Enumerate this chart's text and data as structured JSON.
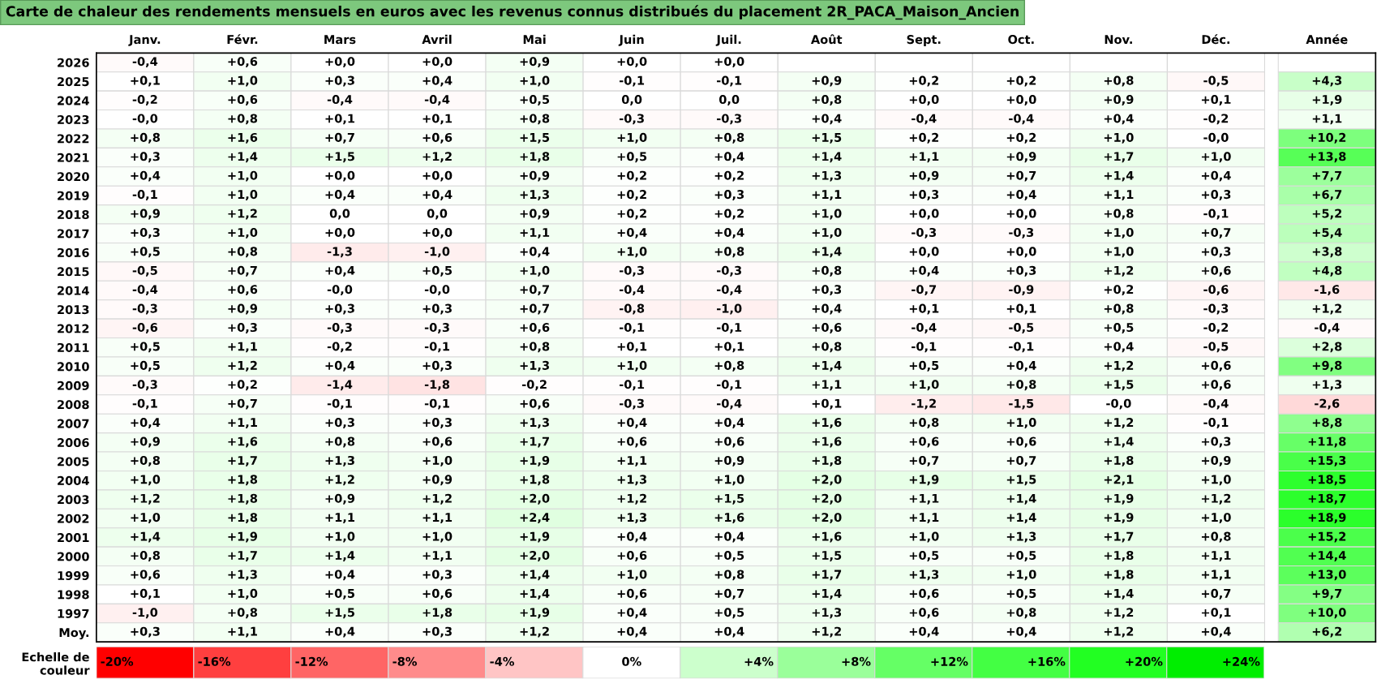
{
  "chart_data": [
    {
      "type": "heatmap",
      "title": "Carte de chaleur des rendements mensuels en euros avec les revenus connus distribués du placement 2R_PACA_Maison_Ancien",
      "categories": [
        "Janv.",
        "Févr.",
        "Mars",
        "Avril",
        "Mai",
        "Juin",
        "Juil.",
        "Août",
        "Sept.",
        "Oct.",
        "Nov.",
        "Déc.",
        "Année"
      ],
      "y_categories": [
        "2026",
        "2025",
        "2024",
        "2023",
        "2022",
        "2021",
        "2020",
        "2019",
        "2018",
        "2017",
        "2016",
        "2015",
        "2014",
        "2013",
        "2012",
        "2011",
        "2010",
        "2009",
        "2008",
        "2007",
        "2006",
        "2005",
        "2004",
        "2003",
        "2002",
        "2001",
        "2000",
        "1999",
        "1998",
        "1997",
        "Moy."
      ],
      "cells": [
        [
          -0.4,
          0.6,
          0.0,
          0.0,
          0.9,
          0.0,
          0.0,
          null,
          null,
          null,
          null,
          null,
          null
        ],
        [
          0.1,
          1.0,
          0.3,
          0.4,
          1.0,
          -0.1,
          -0.1,
          0.9,
          0.2,
          0.2,
          0.8,
          -0.5,
          4.3
        ],
        [
          -0.2,
          0.6,
          -0.4,
          -0.4,
          0.5,
          0.0,
          0.0,
          0.8,
          0.0,
          0.0,
          0.9,
          0.1,
          1.9
        ],
        [
          -0.0,
          0.8,
          0.1,
          0.1,
          0.8,
          -0.3,
          -0.3,
          0.4,
          -0.4,
          -0.4,
          0.4,
          -0.2,
          1.1
        ],
        [
          0.8,
          1.6,
          0.7,
          0.6,
          1.5,
          1.0,
          0.8,
          1.5,
          0.2,
          0.2,
          1.0,
          -0.0,
          10.2
        ],
        [
          0.3,
          1.4,
          1.5,
          1.2,
          1.8,
          0.5,
          0.4,
          1.4,
          1.1,
          0.9,
          1.7,
          1.0,
          13.8
        ],
        [
          0.4,
          1.0,
          0.0,
          0.0,
          0.9,
          0.2,
          0.2,
          1.3,
          0.9,
          0.7,
          1.4,
          0.4,
          7.7
        ],
        [
          -0.1,
          1.0,
          0.4,
          0.4,
          1.3,
          0.2,
          0.3,
          1.1,
          0.3,
          0.4,
          1.1,
          0.3,
          6.7
        ],
        [
          0.9,
          1.2,
          0.0,
          0.0,
          0.9,
          0.2,
          0.2,
          1.0,
          0.0,
          0.0,
          0.8,
          -0.1,
          5.2
        ],
        [
          0.3,
          1.0,
          0.0,
          0.0,
          1.1,
          0.4,
          0.4,
          1.0,
          -0.3,
          -0.3,
          1.0,
          0.7,
          5.4
        ],
        [
          0.5,
          0.8,
          -1.3,
          -1.0,
          0.4,
          1.0,
          0.8,
          1.4,
          0.0,
          0.0,
          1.0,
          0.3,
          3.8
        ],
        [
          -0.5,
          0.7,
          0.4,
          0.5,
          1.0,
          -0.3,
          -0.3,
          0.8,
          0.4,
          0.3,
          1.2,
          0.6,
          4.8
        ],
        [
          -0.4,
          0.6,
          -0.0,
          -0.0,
          0.7,
          -0.4,
          -0.4,
          0.3,
          -0.7,
          -0.9,
          0.2,
          -0.6,
          -1.6
        ],
        [
          -0.3,
          0.9,
          0.3,
          0.3,
          0.7,
          -0.8,
          -1.0,
          0.4,
          0.1,
          0.1,
          0.8,
          -0.3,
          1.2
        ],
        [
          -0.6,
          0.3,
          -0.3,
          -0.3,
          0.6,
          -0.1,
          -0.1,
          0.6,
          -0.4,
          -0.5,
          0.5,
          -0.2,
          -0.4
        ],
        [
          0.5,
          1.1,
          -0.2,
          -0.1,
          0.8,
          0.1,
          0.1,
          0.8,
          -0.1,
          -0.1,
          0.4,
          -0.5,
          2.8
        ],
        [
          0.5,
          1.2,
          0.4,
          0.3,
          1.3,
          1.0,
          0.8,
          1.4,
          0.5,
          0.4,
          1.2,
          0.6,
          9.8
        ],
        [
          -0.3,
          0.2,
          -1.4,
          -1.8,
          -0.2,
          -0.1,
          -0.1,
          1.1,
          1.0,
          0.8,
          1.5,
          0.6,
          1.3
        ],
        [
          -0.1,
          0.7,
          -0.1,
          -0.1,
          0.6,
          -0.3,
          -0.4,
          0.1,
          -1.2,
          -1.5,
          -0.0,
          -0.4,
          -2.6
        ],
        [
          0.4,
          1.1,
          0.3,
          0.3,
          1.3,
          0.4,
          0.4,
          1.6,
          0.8,
          1.0,
          1.2,
          -0.1,
          8.8
        ],
        [
          0.9,
          1.6,
          0.8,
          0.6,
          1.7,
          0.6,
          0.6,
          1.6,
          0.6,
          0.6,
          1.4,
          0.3,
          11.8
        ],
        [
          0.8,
          1.7,
          1.3,
          1.0,
          1.9,
          1.1,
          0.9,
          1.8,
          0.7,
          0.7,
          1.8,
          0.9,
          15.3
        ],
        [
          1.0,
          1.8,
          1.2,
          0.9,
          1.8,
          1.3,
          1.0,
          2.0,
          1.9,
          1.5,
          2.1,
          1.0,
          18.5
        ],
        [
          1.2,
          1.8,
          0.9,
          1.2,
          2.0,
          1.2,
          1.5,
          2.0,
          1.1,
          1.4,
          1.9,
          1.2,
          18.7
        ],
        [
          1.0,
          1.8,
          1.1,
          1.1,
          2.4,
          1.3,
          1.6,
          2.0,
          1.1,
          1.4,
          1.9,
          1.0,
          18.9
        ],
        [
          1.4,
          1.9,
          1.0,
          1.0,
          1.9,
          0.4,
          0.4,
          1.6,
          1.0,
          1.3,
          1.7,
          0.8,
          15.2
        ],
        [
          0.8,
          1.7,
          1.4,
          1.1,
          2.0,
          0.6,
          0.5,
          1.5,
          0.5,
          0.5,
          1.8,
          1.1,
          14.4
        ],
        [
          0.6,
          1.3,
          0.4,
          0.3,
          1.4,
          1.0,
          0.8,
          1.7,
          1.3,
          1.0,
          1.8,
          1.1,
          13.0
        ],
        [
          0.1,
          1.0,
          0.5,
          0.6,
          1.4,
          0.6,
          0.7,
          1.4,
          0.6,
          0.5,
          1.4,
          0.7,
          9.7
        ],
        [
          -1.0,
          0.8,
          1.5,
          1.8,
          1.9,
          0.4,
          0.5,
          1.3,
          0.6,
          0.8,
          1.2,
          0.1,
          10.0
        ],
        [
          0.3,
          1.1,
          0.4,
          0.3,
          1.2,
          0.4,
          0.4,
          1.2,
          0.4,
          0.4,
          1.2,
          0.4,
          6.2
        ]
      ],
      "cell_labels": [
        [
          "-0,4",
          "+0,6",
          "+0,0",
          "+0,0",
          "+0,9",
          "+0,0",
          "+0,0",
          null,
          null,
          null,
          null,
          null,
          null
        ],
        [
          "+0,1",
          "+1,0",
          "+0,3",
          "+0,4",
          "+1,0",
          "-0,1",
          "-0,1",
          "+0,9",
          "+0,2",
          "+0,2",
          "+0,8",
          "-0,5",
          "+4,3"
        ],
        [
          "-0,2",
          "+0,6",
          "-0,4",
          "-0,4",
          "+0,5",
          "0,0",
          "0,0",
          "+0,8",
          "+0,0",
          "+0,0",
          "+0,9",
          "+0,1",
          "+1,9"
        ],
        [
          "-0,0",
          "+0,8",
          "+0,1",
          "+0,1",
          "+0,8",
          "-0,3",
          "-0,3",
          "+0,4",
          "-0,4",
          "-0,4",
          "+0,4",
          "-0,2",
          "+1,1"
        ],
        [
          "+0,8",
          "+1,6",
          "+0,7",
          "+0,6",
          "+1,5",
          "+1,0",
          "+0,8",
          "+1,5",
          "+0,2",
          "+0,2",
          "+1,0",
          "-0,0",
          "+10,2"
        ],
        [
          "+0,3",
          "+1,4",
          "+1,5",
          "+1,2",
          "+1,8",
          "+0,5",
          "+0,4",
          "+1,4",
          "+1,1",
          "+0,9",
          "+1,7",
          "+1,0",
          "+13,8"
        ],
        [
          "+0,4",
          "+1,0",
          "+0,0",
          "+0,0",
          "+0,9",
          "+0,2",
          "+0,2",
          "+1,3",
          "+0,9",
          "+0,7",
          "+1,4",
          "+0,4",
          "+7,7"
        ],
        [
          "-0,1",
          "+1,0",
          "+0,4",
          "+0,4",
          "+1,3",
          "+0,2",
          "+0,3",
          "+1,1",
          "+0,3",
          "+0,4",
          "+1,1",
          "+0,3",
          "+6,7"
        ],
        [
          "+0,9",
          "+1,2",
          "0,0",
          "0,0",
          "+0,9",
          "+0,2",
          "+0,2",
          "+1,0",
          "+0,0",
          "+0,0",
          "+0,8",
          "-0,1",
          "+5,2"
        ],
        [
          "+0,3",
          "+1,0",
          "+0,0",
          "+0,0",
          "+1,1",
          "+0,4",
          "+0,4",
          "+1,0",
          "-0,3",
          "-0,3",
          "+1,0",
          "+0,7",
          "+5,4"
        ],
        [
          "+0,5",
          "+0,8",
          "-1,3",
          "-1,0",
          "+0,4",
          "+1,0",
          "+0,8",
          "+1,4",
          "+0,0",
          "+0,0",
          "+1,0",
          "+0,3",
          "+3,8"
        ],
        [
          "-0,5",
          "+0,7",
          "+0,4",
          "+0,5",
          "+1,0",
          "-0,3",
          "-0,3",
          "+0,8",
          "+0,4",
          "+0,3",
          "+1,2",
          "+0,6",
          "+4,8"
        ],
        [
          "-0,4",
          "+0,6",
          "-0,0",
          "-0,0",
          "+0,7",
          "-0,4",
          "-0,4",
          "+0,3",
          "-0,7",
          "-0,9",
          "+0,2",
          "-0,6",
          "-1,6"
        ],
        [
          "-0,3",
          "+0,9",
          "+0,3",
          "+0,3",
          "+0,7",
          "-0,8",
          "-1,0",
          "+0,4",
          "+0,1",
          "+0,1",
          "+0,8",
          "-0,3",
          "+1,2"
        ],
        [
          "-0,6",
          "+0,3",
          "-0,3",
          "-0,3",
          "+0,6",
          "-0,1",
          "-0,1",
          "+0,6",
          "-0,4",
          "-0,5",
          "+0,5",
          "-0,2",
          "-0,4"
        ],
        [
          "+0,5",
          "+1,1",
          "-0,2",
          "-0,1",
          "+0,8",
          "+0,1",
          "+0,1",
          "+0,8",
          "-0,1",
          "-0,1",
          "+0,4",
          "-0,5",
          "+2,8"
        ],
        [
          "+0,5",
          "+1,2",
          "+0,4",
          "+0,3",
          "+1,3",
          "+1,0",
          "+0,8",
          "+1,4",
          "+0,5",
          "+0,4",
          "+1,2",
          "+0,6",
          "+9,8"
        ],
        [
          "-0,3",
          "+0,2",
          "-1,4",
          "-1,8",
          "-0,2",
          "-0,1",
          "-0,1",
          "+1,1",
          "+1,0",
          "+0,8",
          "+1,5",
          "+0,6",
          "+1,3"
        ],
        [
          "-0,1",
          "+0,7",
          "-0,1",
          "-0,1",
          "+0,6",
          "-0,3",
          "-0,4",
          "+0,1",
          "-1,2",
          "-1,5",
          "-0,0",
          "-0,4",
          "-2,6"
        ],
        [
          "+0,4",
          "+1,1",
          "+0,3",
          "+0,3",
          "+1,3",
          "+0,4",
          "+0,4",
          "+1,6",
          "+0,8",
          "+1,0",
          "+1,2",
          "-0,1",
          "+8,8"
        ],
        [
          "+0,9",
          "+1,6",
          "+0,8",
          "+0,6",
          "+1,7",
          "+0,6",
          "+0,6",
          "+1,6",
          "+0,6",
          "+0,6",
          "+1,4",
          "+0,3",
          "+11,8"
        ],
        [
          "+0,8",
          "+1,7",
          "+1,3",
          "+1,0",
          "+1,9",
          "+1,1",
          "+0,9",
          "+1,8",
          "+0,7",
          "+0,7",
          "+1,8",
          "+0,9",
          "+15,3"
        ],
        [
          "+1,0",
          "+1,8",
          "+1,2",
          "+0,9",
          "+1,8",
          "+1,3",
          "+1,0",
          "+2,0",
          "+1,9",
          "+1,5",
          "+2,1",
          "+1,0",
          "+18,5"
        ],
        [
          "+1,2",
          "+1,8",
          "+0,9",
          "+1,2",
          "+2,0",
          "+1,2",
          "+1,5",
          "+2,0",
          "+1,1",
          "+1,4",
          "+1,9",
          "+1,2",
          "+18,7"
        ],
        [
          "+1,0",
          "+1,8",
          "+1,1",
          "+1,1",
          "+2,4",
          "+1,3",
          "+1,6",
          "+2,0",
          "+1,1",
          "+1,4",
          "+1,9",
          "+1,0",
          "+18,9"
        ],
        [
          "+1,4",
          "+1,9",
          "+1,0",
          "+1,0",
          "+1,9",
          "+0,4",
          "+0,4",
          "+1,6",
          "+1,0",
          "+1,3",
          "+1,7",
          "+0,8",
          "+15,2"
        ],
        [
          "+0,8",
          "+1,7",
          "+1,4",
          "+1,1",
          "+2,0",
          "+0,6",
          "+0,5",
          "+1,5",
          "+0,5",
          "+0,5",
          "+1,8",
          "+1,1",
          "+14,4"
        ],
        [
          "+0,6",
          "+1,3",
          "+0,4",
          "+0,3",
          "+1,4",
          "+1,0",
          "+0,8",
          "+1,7",
          "+1,3",
          "+1,0",
          "+1,8",
          "+1,1",
          "+13,0"
        ],
        [
          "+0,1",
          "+1,0",
          "+0,5",
          "+0,6",
          "+1,4",
          "+0,6",
          "+0,7",
          "+1,4",
          "+0,6",
          "+0,5",
          "+1,4",
          "+0,7",
          "+9,7"
        ],
        [
          "-1,0",
          "+0,8",
          "+1,5",
          "+1,8",
          "+1,9",
          "+0,4",
          "+0,5",
          "+1,3",
          "+0,6",
          "+0,8",
          "+1,2",
          "+0,1",
          "+10,0"
        ],
        [
          "+0,3",
          "+1,1",
          "+0,4",
          "+0,3",
          "+1,2",
          "+0,4",
          "+0,4",
          "+1,2",
          "+0,4",
          "+0,4",
          "+1,2",
          "+0,4",
          "+6,2"
        ]
      ],
      "colors": [
        "#ff0000",
        "#ff4040",
        "#ff6666",
        "#ff8c8c",
        "#ffc4c4",
        "#ffffff",
        "#ccffcc",
        "#99ff99",
        "#66ff66",
        "#44ff44",
        "#22ff22",
        "#00ee00"
      ]
    },
    {
      "type": "heatmap",
      "categories": [
        null,
        null,
        null,
        null,
        null,
        null,
        null,
        null,
        null,
        null,
        null,
        null
      ],
      "y_categories": [
        "Echelle de\ncouleur"
      ],
      "cells": [
        [
          -20,
          -16,
          -12,
          -8,
          -4,
          0,
          4,
          8,
          12,
          16,
          20,
          24
        ]
      ],
      "cell_labels": [
        [
          "-20%",
          "-16%",
          "-12%",
          "-8%",
          "-4%",
          "0%",
          "+4%",
          "+8%",
          "+12%",
          "+16%",
          "+20%",
          "+24%"
        ]
      ],
      "colors": [
        "#ff0000",
        "#ff4040",
        "#ff6666",
        "#ff8c8c",
        "#ffc4c4",
        "#ffffff",
        "#ccffcc",
        "#99ff99",
        "#66ff66",
        "#44ff44",
        "#22ff22",
        "#00ee00"
      ],
      "tick_labels": "y"
    }
  ]
}
